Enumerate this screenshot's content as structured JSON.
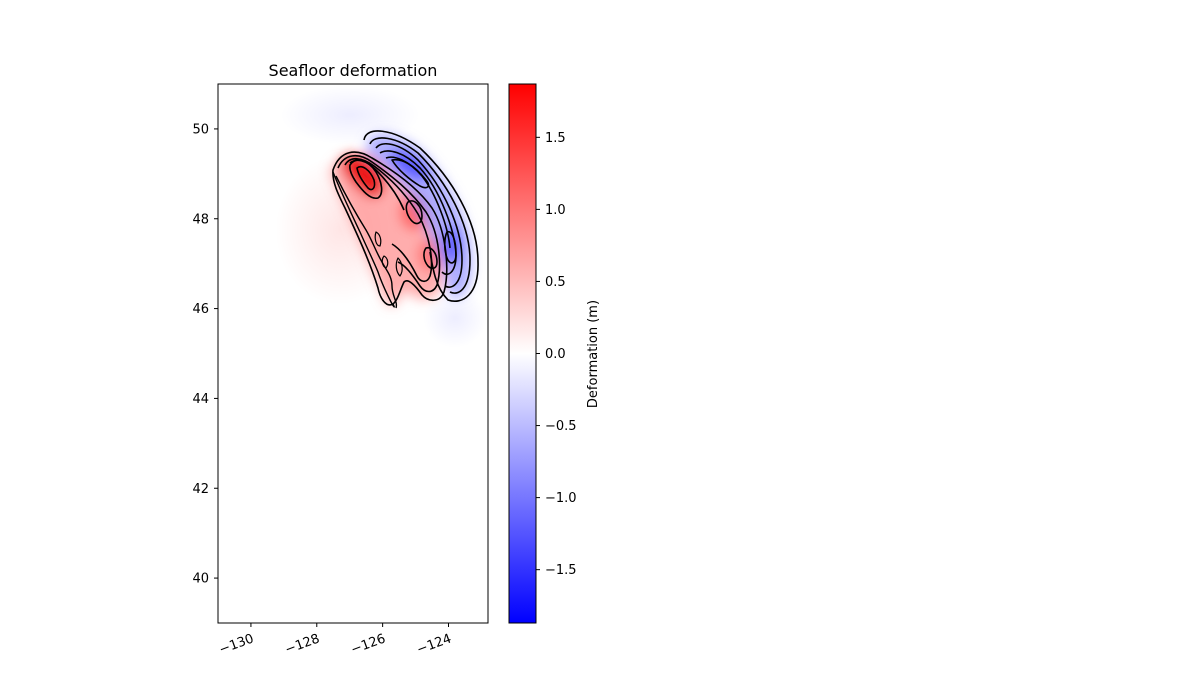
{
  "chart_data": {
    "type": "heatmap",
    "title": "Seafloor deformation",
    "xlabel": "",
    "ylabel": "",
    "xlim": [
      -131,
      -122.8
    ],
    "ylim": [
      39,
      51
    ],
    "x_ticks": [
      -130,
      -128,
      -126,
      -124
    ],
    "x_tick_labels": [
      "−130",
      "−128",
      "−126",
      "−124"
    ],
    "y_ticks": [
      40,
      42,
      44,
      46,
      48,
      50
    ],
    "y_tick_labels": [
      "40",
      "42",
      "44",
      "46",
      "48",
      "50"
    ],
    "grid": false,
    "colormap": "bwr",
    "colors": {
      "negative": "#0000ff",
      "zero": "#ffffff",
      "positive": "#ff0000",
      "contour": "#000000"
    },
    "colorbar": {
      "label": "Deformation (m)",
      "range": [
        -1.87,
        1.87
      ],
      "ticks": [
        -1.5,
        -1.0,
        -0.5,
        0.0,
        0.5,
        1.0,
        1.5
      ],
      "tick_labels": [
        "−1.5",
        "−1.0",
        "−0.5",
        "0.0",
        "0.5",
        "1.0",
        "1.5"
      ]
    },
    "contour_levels": [
      -1.5,
      -1.25,
      -1.0,
      -0.75,
      -0.5,
      -0.25,
      -0.1,
      0.1,
      0.25,
      0.5,
      0.75,
      1.0,
      1.25,
      1.5
    ],
    "fields": [
      {
        "kind": "uplift",
        "center": [
          -126.5,
          48.85
        ],
        "peak": 1.85
      },
      {
        "kind": "uplift",
        "center": [
          -124.75,
          48.15
        ],
        "peak": 0.9
      },
      {
        "kind": "uplift",
        "center": [
          -124.3,
          47.2
        ],
        "peak": 0.85
      },
      {
        "kind": "uplift",
        "center": [
          -125.6,
          47.4
        ],
        "peak": 0.35
      },
      {
        "kind": "subsidence",
        "center": [
          -125.1,
          48.95
        ],
        "peak": -1.3
      },
      {
        "kind": "subsidence",
        "center": [
          -123.75,
          47.5
        ],
        "peak": -1.0
      }
    ]
  }
}
